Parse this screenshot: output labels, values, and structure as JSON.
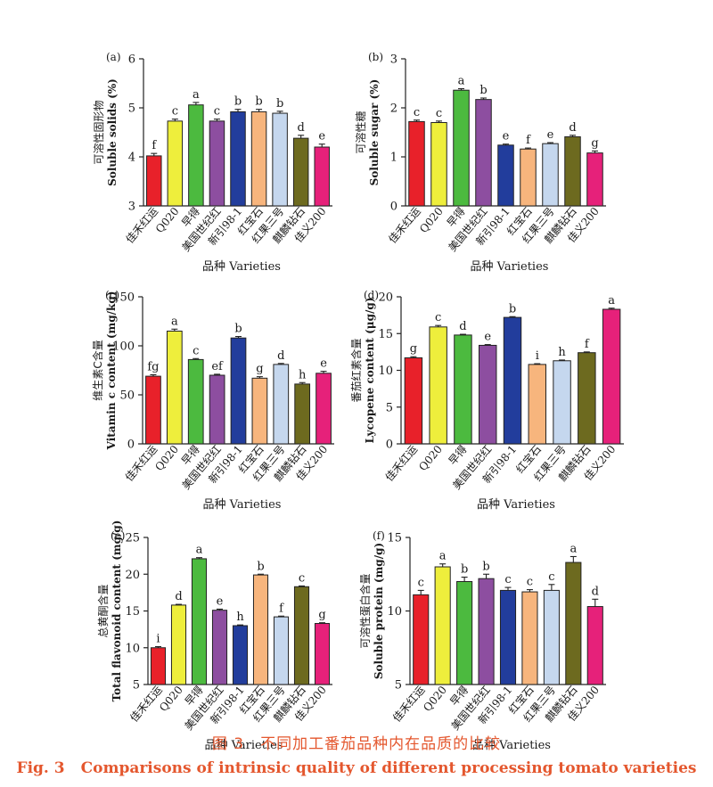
{
  "figure_caption": {
    "zh_number": "图 3",
    "zh_text": "不同加工番茄品种内在品质的比较",
    "en_number": "Fig. 3",
    "en_text": "Comparisons of intrinsic quality of different processing tomato varieties"
  },
  "varieties": [
    "佳禾红运",
    "Q020",
    "早得",
    "美国世纪红",
    "新引98-1",
    "红宝石",
    "红果三号",
    "麒麟钻石",
    "佳义200"
  ],
  "bar_colors": [
    "#e8212a",
    "#eeee3c",
    "#4cba3f",
    "#8d4ea0",
    "#223d9c",
    "#f7b57d",
    "#c5d7ee",
    "#6d6a1f",
    "#e6217a"
  ],
  "chart_data": [
    {
      "type": "bar",
      "panel": "(a)",
      "ylabel_zh": "可溶性固形物",
      "ylabel_en": "Soluble solids (%)",
      "xlabel": "品种 Varieties",
      "ylim": [
        3,
        6
      ],
      "ticks": [
        3,
        4,
        5,
        6
      ],
      "values": [
        4.02,
        4.73,
        5.06,
        4.73,
        4.92,
        4.92,
        4.89,
        4.38,
        4.2
      ],
      "errors": [
        0.05,
        0.04,
        0.05,
        0.04,
        0.05,
        0.05,
        0.04,
        0.06,
        0.06
      ],
      "letters": [
        "f",
        "c",
        "a",
        "c",
        "b",
        "b",
        "b",
        "d",
        "e"
      ]
    },
    {
      "type": "bar",
      "panel": "(b)",
      "ylabel_zh": "可溶性糖",
      "ylabel_en": "Soluble sugar (%)",
      "xlabel": "品种 Varieties",
      "ylim": [
        0,
        3
      ],
      "ticks": [
        0,
        1,
        2,
        3
      ],
      "values": [
        1.72,
        1.7,
        2.36,
        2.17,
        1.24,
        1.16,
        1.27,
        1.41,
        1.08
      ],
      "errors": [
        0.03,
        0.03,
        0.03,
        0.03,
        0.02,
        0.02,
        0.02,
        0.03,
        0.04
      ],
      "letters": [
        "c",
        "c",
        "a",
        "b",
        "e",
        "f",
        "e",
        "d",
        "g"
      ]
    },
    {
      "type": "bar",
      "panel": "(c)",
      "ylabel_zh": "维生素C含量",
      "ylabel_en": "Vitamin c content (mg/kg)",
      "xlabel": "品种 Varieties",
      "ylim": [
        0,
        150
      ],
      "ticks": [
        0,
        50,
        100,
        150
      ],
      "values": [
        69,
        115,
        86,
        70,
        108,
        67,
        81,
        61,
        72
      ],
      "errors": [
        1.5,
        2.0,
        1.0,
        1.0,
        1.5,
        1.5,
        1.0,
        1.5,
        2.0
      ],
      "letters": [
        "fg",
        "a",
        "c",
        "ef",
        "b",
        "g",
        "d",
        "h",
        "e"
      ]
    },
    {
      "type": "bar",
      "panel": "(d)",
      "ylabel_zh": "番茄红素含量",
      "ylabel_en": "Lycopene content (μg/g)",
      "xlabel": "品种 Varieties",
      "ylim": [
        0,
        20
      ],
      "ticks": [
        0,
        5,
        10,
        15,
        20
      ],
      "values": [
        11.7,
        15.9,
        14.8,
        13.4,
        17.2,
        10.8,
        11.3,
        12.4,
        18.3
      ],
      "errors": [
        0.15,
        0.2,
        0.1,
        0.1,
        0.1,
        0.1,
        0.1,
        0.1,
        0.15
      ],
      "letters": [
        "g",
        "c",
        "d",
        "e",
        "b",
        "i",
        "h",
        "f",
        "a"
      ]
    },
    {
      "type": "bar",
      "panel": "(e)",
      "ylabel_zh": "总黄酮含量",
      "ylabel_en": "Total flavonoid content (mg/g)",
      "xlabel": "品种 Varieties",
      "ylim": [
        5,
        25
      ],
      "ticks": [
        5,
        10,
        15,
        20,
        25
      ],
      "values": [
        10.0,
        15.8,
        22.1,
        15.1,
        13.0,
        19.9,
        14.2,
        18.3,
        13.3
      ],
      "errors": [
        0.15,
        0.1,
        0.15,
        0.15,
        0.1,
        0.1,
        0.1,
        0.1,
        0.1
      ],
      "letters": [
        "i",
        "d",
        "a",
        "e",
        "h",
        "b",
        "f",
        "c",
        "g"
      ]
    },
    {
      "type": "bar",
      "panel": "(f)",
      "ylabel_zh": "可溶性蛋白含量",
      "ylabel_en": "Soluble protein (mg/g)",
      "xlabel": "品种 Varieties",
      "ylim": [
        5,
        15
      ],
      "ticks": [
        5,
        10,
        15
      ],
      "values": [
        11.1,
        13.0,
        12.0,
        12.2,
        11.4,
        11.3,
        11.4,
        13.3,
        10.3
      ],
      "errors": [
        0.3,
        0.2,
        0.3,
        0.3,
        0.2,
        0.15,
        0.4,
        0.4,
        0.5
      ],
      "letters": [
        "c",
        "a",
        "b",
        "b",
        "c",
        "c",
        "c",
        "a",
        "d"
      ]
    }
  ]
}
